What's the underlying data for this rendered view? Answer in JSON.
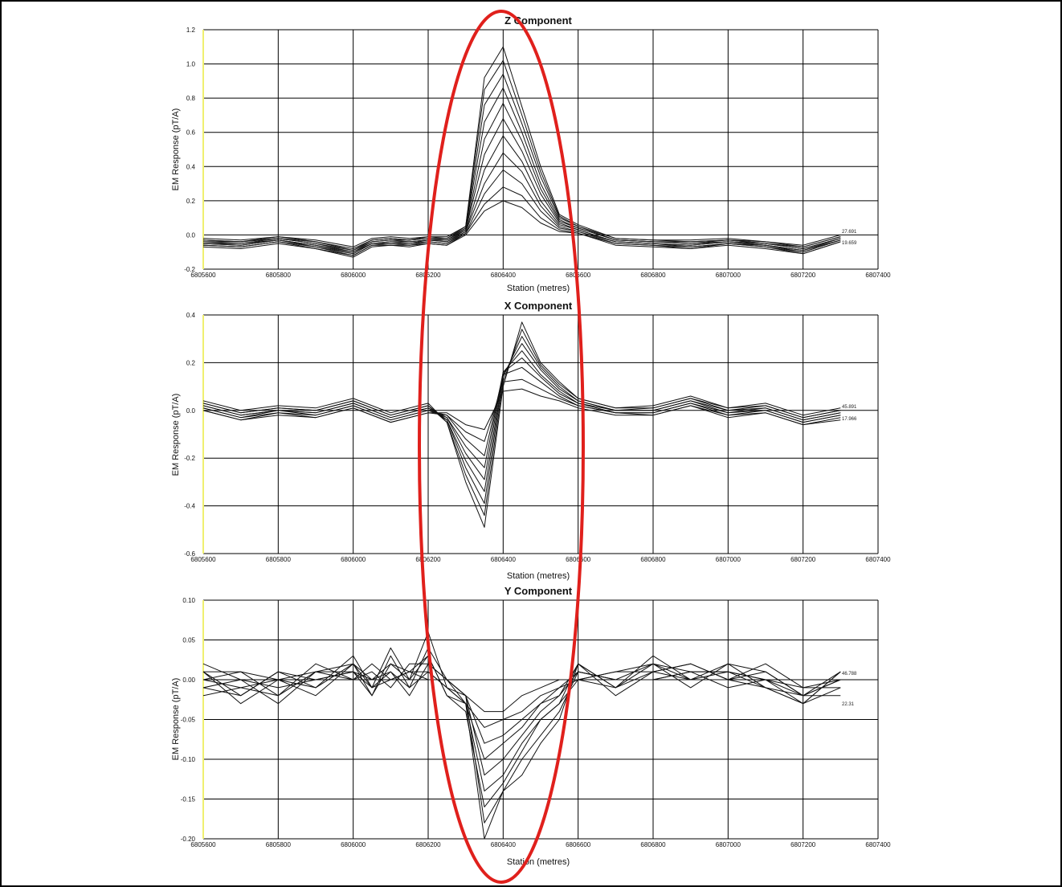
{
  "chart_data": [
    {
      "type": "line",
      "title": "Z Component",
      "xlabel": "Station (metres)",
      "ylabel": "EM Response (pT/A)",
      "xlim": [
        6805600,
        6807400
      ],
      "ylim": [
        -0.2,
        1.2
      ],
      "xticks": [
        "6805600",
        "6805800",
        "6806000",
        "6806200",
        "6806400",
        "6806600",
        "6806800",
        "6807000",
        "6807200",
        "6807400"
      ],
      "yticks": [
        "-0.2",
        "0.0",
        "0.2",
        "0.4",
        "0.6",
        "0.8",
        "1.0",
        "1.2"
      ],
      "grid": true,
      "x": [
        6805600,
        6805700,
        6805800,
        6805900,
        6806000,
        6806050,
        6806100,
        6806150,
        6806200,
        6806250,
        6806300,
        6806350,
        6806400,
        6806450,
        6806500,
        6806550,
        6806600,
        6806700,
        6806800,
        6806900,
        6807000,
        6807100,
        6807200,
        6807300
      ],
      "series": [
        {
          "values": [
            -0.02,
            -0.03,
            -0.01,
            -0.03,
            -0.07,
            -0.02,
            -0.01,
            -0.02,
            -0.01,
            -0.01,
            0.05,
            0.92,
            1.1,
            0.75,
            0.4,
            0.12,
            0.06,
            -0.02,
            -0.03,
            -0.03,
            -0.02,
            -0.04,
            -0.06,
            0.0
          ]
        },
        {
          "values": [
            -0.03,
            -0.04,
            -0.01,
            -0.04,
            -0.08,
            -0.03,
            -0.02,
            -0.03,
            -0.01,
            -0.02,
            0.05,
            0.85,
            1.02,
            0.7,
            0.37,
            0.11,
            0.05,
            -0.02,
            -0.03,
            -0.04,
            -0.03,
            -0.04,
            -0.07,
            -0.01
          ]
        },
        {
          "values": [
            -0.03,
            -0.04,
            -0.02,
            -0.04,
            -0.09,
            -0.03,
            -0.02,
            -0.03,
            -0.02,
            -0.02,
            0.04,
            0.76,
            0.94,
            0.65,
            0.34,
            0.1,
            0.05,
            -0.03,
            -0.04,
            -0.04,
            -0.03,
            -0.05,
            -0.07,
            -0.01
          ]
        },
        {
          "values": [
            -0.04,
            -0.04,
            -0.02,
            -0.05,
            -0.09,
            -0.04,
            -0.03,
            -0.03,
            -0.02,
            -0.03,
            0.04,
            0.66,
            0.86,
            0.6,
            0.3,
            0.09,
            0.04,
            -0.03,
            -0.04,
            -0.05,
            -0.03,
            -0.05,
            -0.08,
            -0.02
          ]
        },
        {
          "values": [
            -0.04,
            -0.05,
            -0.02,
            -0.05,
            -0.1,
            -0.04,
            -0.03,
            -0.04,
            -0.03,
            -0.03,
            0.03,
            0.56,
            0.77,
            0.55,
            0.27,
            0.08,
            0.04,
            -0.03,
            -0.04,
            -0.05,
            -0.04,
            -0.05,
            -0.08,
            -0.02
          ]
        },
        {
          "values": [
            -0.05,
            -0.05,
            -0.03,
            -0.06,
            -0.1,
            -0.05,
            -0.04,
            -0.04,
            -0.03,
            -0.04,
            0.03,
            0.47,
            0.68,
            0.49,
            0.24,
            0.07,
            0.03,
            -0.04,
            -0.05,
            -0.06,
            -0.04,
            -0.06,
            -0.09,
            -0.02
          ]
        },
        {
          "values": [
            -0.05,
            -0.06,
            -0.03,
            -0.06,
            -0.11,
            -0.05,
            -0.04,
            -0.05,
            -0.03,
            -0.04,
            0.02,
            0.38,
            0.58,
            0.43,
            0.2,
            0.06,
            0.03,
            -0.04,
            -0.05,
            -0.06,
            -0.04,
            -0.06,
            -0.09,
            -0.03
          ]
        },
        {
          "values": [
            -0.05,
            -0.06,
            -0.03,
            -0.07,
            -0.11,
            -0.05,
            -0.05,
            -0.05,
            -0.04,
            -0.05,
            0.02,
            0.3,
            0.48,
            0.37,
            0.17,
            0.05,
            0.02,
            -0.04,
            -0.05,
            -0.07,
            -0.05,
            -0.06,
            -0.1,
            -0.03
          ]
        },
        {
          "values": [
            -0.06,
            -0.07,
            -0.04,
            -0.07,
            -0.12,
            -0.06,
            -0.05,
            -0.06,
            -0.04,
            -0.05,
            0.01,
            0.24,
            0.38,
            0.3,
            0.14,
            0.04,
            0.02,
            -0.05,
            -0.06,
            -0.07,
            -0.05,
            -0.07,
            -0.1,
            -0.03
          ]
        },
        {
          "values": [
            -0.06,
            -0.07,
            -0.04,
            -0.08,
            -0.12,
            -0.06,
            -0.06,
            -0.06,
            -0.05,
            -0.06,
            0.01,
            0.18,
            0.28,
            0.23,
            0.1,
            0.03,
            0.01,
            -0.05,
            -0.06,
            -0.08,
            -0.05,
            -0.07,
            -0.11,
            -0.04
          ]
        },
        {
          "values": [
            -0.07,
            -0.08,
            -0.05,
            -0.08,
            -0.13,
            -0.07,
            -0.06,
            -0.07,
            -0.05,
            -0.06,
            0.0,
            0.14,
            0.2,
            0.16,
            0.07,
            0.02,
            0.01,
            -0.06,
            -0.07,
            -0.08,
            -0.06,
            -0.08,
            -0.11,
            -0.04
          ]
        }
      ],
      "end_labels": [
        "27.691",
        "19.659"
      ]
    },
    {
      "type": "line",
      "title": "X Component",
      "xlabel": "Station (metres)",
      "ylabel": "EM Response (pT/A)",
      "xlim": [
        6805600,
        6807400
      ],
      "ylim": [
        -0.6,
        0.4
      ],
      "xticks": [
        "6805600",
        "6805800",
        "6806000",
        "6806200",
        "6806400",
        "6806600",
        "6806800",
        "6807000",
        "6807200",
        "6807400"
      ],
      "yticks": [
        "-0.6",
        "-0.4",
        "-0.2",
        "0.0",
        "0.2",
        "0.4"
      ],
      "grid": true,
      "x": [
        6805600,
        6805700,
        6805800,
        6805900,
        6806000,
        6806100,
        6806200,
        6806250,
        6806300,
        6806350,
        6806400,
        6806450,
        6806500,
        6806550,
        6806600,
        6806700,
        6806800,
        6806900,
        6807000,
        6807100,
        6807200,
        6807300
      ],
      "series": [
        {
          "values": [
            0.04,
            0.0,
            0.02,
            0.01,
            0.05,
            -0.01,
            0.03,
            -0.05,
            -0.3,
            -0.49,
            0.1,
            0.37,
            0.2,
            0.12,
            0.05,
            0.01,
            0.02,
            0.06,
            0.01,
            0.03,
            -0.02,
            0.01
          ]
        },
        {
          "values": [
            0.03,
            -0.01,
            0.01,
            0.0,
            0.04,
            -0.02,
            0.02,
            -0.05,
            -0.27,
            -0.44,
            0.12,
            0.34,
            0.19,
            0.11,
            0.05,
            0.01,
            0.01,
            0.05,
            0.01,
            0.02,
            -0.03,
            0.0
          ]
        },
        {
          "values": [
            0.03,
            -0.01,
            0.01,
            0.0,
            0.04,
            -0.02,
            0.02,
            -0.04,
            -0.24,
            -0.39,
            0.14,
            0.31,
            0.18,
            0.1,
            0.04,
            0.0,
            0.01,
            0.05,
            0.0,
            0.02,
            -0.03,
            0.0
          ]
        },
        {
          "values": [
            0.02,
            -0.02,
            0.0,
            -0.01,
            0.03,
            -0.03,
            0.01,
            -0.04,
            -0.21,
            -0.34,
            0.15,
            0.28,
            0.17,
            0.09,
            0.04,
            0.0,
            0.0,
            0.04,
            0.0,
            0.01,
            -0.04,
            -0.01
          ]
        },
        {
          "values": [
            0.02,
            -0.02,
            0.0,
            -0.01,
            0.03,
            -0.03,
            0.01,
            -0.03,
            -0.18,
            -0.29,
            0.16,
            0.25,
            0.15,
            0.08,
            0.03,
            0.0,
            0.0,
            0.04,
            -0.01,
            0.01,
            -0.04,
            -0.01
          ]
        },
        {
          "values": [
            0.01,
            -0.03,
            0.0,
            -0.02,
            0.02,
            -0.04,
            0.0,
            -0.03,
            -0.15,
            -0.24,
            0.16,
            0.22,
            0.14,
            0.07,
            0.03,
            -0.01,
            -0.01,
            0.03,
            -0.01,
            0.0,
            -0.05,
            -0.02
          ]
        },
        {
          "values": [
            0.01,
            -0.03,
            -0.01,
            -0.02,
            0.02,
            -0.04,
            0.0,
            -0.02,
            -0.12,
            -0.19,
            0.15,
            0.18,
            0.12,
            0.06,
            0.02,
            -0.01,
            -0.01,
            0.03,
            -0.02,
            0.0,
            -0.05,
            -0.02
          ]
        },
        {
          "values": [
            0.0,
            -0.04,
            -0.01,
            -0.03,
            0.01,
            -0.05,
            -0.01,
            -0.02,
            -0.09,
            -0.13,
            0.12,
            0.13,
            0.09,
            0.05,
            0.02,
            -0.01,
            -0.02,
            0.02,
            -0.02,
            -0.01,
            -0.06,
            -0.03
          ]
        },
        {
          "values": [
            0.0,
            -0.04,
            -0.02,
            -0.03,
            0.01,
            -0.05,
            -0.01,
            -0.01,
            -0.06,
            -0.08,
            0.08,
            0.09,
            0.06,
            0.04,
            0.01,
            -0.02,
            -0.02,
            0.02,
            -0.03,
            -0.01,
            -0.06,
            -0.04
          ]
        }
      ],
      "end_labels": [
        "45.891",
        "17.966"
      ]
    },
    {
      "type": "line",
      "title": "Y Component",
      "xlabel": "Station (metres)",
      "ylabel": "EM Response (pT/A)",
      "xlim": [
        6805600,
        6807400
      ],
      "ylim": [
        -0.2,
        0.1
      ],
      "xticks": [
        "6805600",
        "6805800",
        "6806000",
        "6806200",
        "6806400",
        "6806600",
        "6806800",
        "6807000",
        "6807200",
        "6807400"
      ],
      "yticks": [
        "-0.20",
        "-0.15",
        "-0.10",
        "-0.05",
        "0.00",
        "0.05",
        "0.10"
      ],
      "grid": true,
      "x": [
        6805600,
        6805700,
        6805800,
        6805900,
        6806000,
        6806050,
        6806100,
        6806150,
        6806200,
        6806250,
        6806300,
        6806350,
        6806400,
        6806450,
        6806500,
        6806550,
        6806600,
        6806700,
        6806800,
        6806900,
        6807000,
        6807100,
        6807200,
        6807300
      ],
      "series": [
        {
          "values": [
            0.01,
            -0.02,
            0.01,
            -0.01,
            0.03,
            -0.01,
            0.04,
            0.0,
            0.06,
            -0.01,
            -0.03,
            -0.2,
            -0.14,
            -0.12,
            -0.08,
            -0.05,
            0.02,
            -0.01,
            0.03,
            0.0,
            0.02,
            -0.01,
            -0.03,
            0.01
          ]
        },
        {
          "values": [
            0.0,
            0.01,
            -0.02,
            0.01,
            0.02,
            -0.02,
            0.03,
            -0.01,
            0.04,
            0.0,
            -0.02,
            -0.18,
            -0.14,
            -0.1,
            -0.07,
            -0.04,
            0.01,
            0.0,
            0.02,
            0.01,
            0.01,
            0.0,
            -0.02,
            0.0
          ]
        },
        {
          "values": [
            -0.01,
            0.0,
            -0.01,
            0.0,
            0.01,
            0.0,
            0.02,
            0.01,
            0.03,
            -0.02,
            -0.04,
            -0.16,
            -0.13,
            -0.09,
            -0.05,
            -0.03,
            0.02,
            -0.02,
            0.01,
            0.02,
            0.0,
            0.02,
            -0.01,
            -0.01
          ]
        },
        {
          "values": [
            0.01,
            -0.03,
            0.0,
            -0.02,
            0.02,
            -0.01,
            0.01,
            -0.02,
            0.02,
            0.0,
            -0.03,
            -0.14,
            -0.12,
            -0.08,
            -0.05,
            -0.03,
            0.0,
            0.01,
            0.02,
            -0.01,
            0.02,
            0.01,
            -0.02,
            0.01
          ]
        },
        {
          "values": [
            0.02,
            0.0,
            -0.03,
            0.01,
            0.0,
            0.02,
            0.0,
            0.01,
            0.01,
            -0.01,
            -0.02,
            -0.12,
            -0.1,
            -0.07,
            -0.04,
            -0.02,
            0.01,
            0.0,
            0.0,
            0.01,
            -0.01,
            0.0,
            -0.01,
            0.0
          ]
        },
        {
          "values": [
            -0.01,
            -0.02,
            0.01,
            0.0,
            0.01,
            -0.02,
            0.02,
            0.0,
            0.03,
            -0.02,
            -0.03,
            -0.1,
            -0.08,
            -0.06,
            -0.03,
            -0.02,
            0.02,
            -0.01,
            0.02,
            0.0,
            0.01,
            -0.01,
            -0.03,
            -0.01
          ]
        },
        {
          "values": [
            0.0,
            -0.01,
            -0.02,
            0.02,
            0.0,
            0.01,
            -0.01,
            0.02,
            0.02,
            0.0,
            -0.02,
            -0.08,
            -0.07,
            -0.05,
            -0.03,
            -0.01,
            0.0,
            0.01,
            0.01,
            0.02,
            0.0,
            0.01,
            -0.02,
            0.0
          ]
        },
        {
          "values": [
            0.01,
            0.01,
            0.0,
            -0.01,
            0.02,
            0.0,
            0.01,
            -0.01,
            0.01,
            -0.01,
            -0.03,
            -0.06,
            -0.05,
            -0.04,
            -0.02,
            -0.01,
            0.01,
            0.0,
            0.0,
            0.01,
            0.01,
            0.0,
            -0.03,
            0.01
          ]
        },
        {
          "values": [
            -0.02,
            -0.01,
            0.0,
            0.01,
            0.01,
            -0.01,
            0.0,
            0.01,
            0.0,
            0.0,
            -0.02,
            -0.04,
            -0.04,
            -0.02,
            -0.01,
            0.0,
            0.0,
            -0.01,
            0.01,
            0.0,
            0.0,
            -0.01,
            -0.02,
            -0.02
          ]
        }
      ],
      "end_labels": [
        "46.788",
        "22.31"
      ]
    }
  ]
}
